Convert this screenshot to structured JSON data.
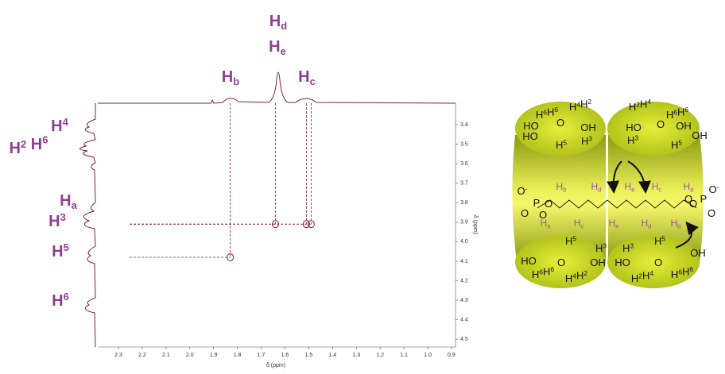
{
  "chart_data": {
    "type": "scatter",
    "x_label": "δ (ppm)",
    "y_label": "δ (ppm)",
    "x": [
      1.83,
      1.64,
      1.51,
      1.49
    ],
    "y": [
      4.08,
      3.91,
      3.91,
      3.91
    ],
    "color": "#7a1f2b",
    "xlim": [
      2.387,
      0.883
    ],
    "ylim": [
      3.29,
      4.54
    ],
    "xticks": [
      2.3,
      2.2,
      2.1,
      {
        "value": 2,
        "label": "2.0"
      },
      1.9,
      1.8,
      1.7,
      1.6,
      1.5,
      1.4,
      1.3,
      1.2,
      1.1,
      {
        "value": 1,
        "label": "1.0"
      },
      0.9
    ],
    "yticks": [
      3.4,
      3.5,
      3.6,
      3.7,
      3.8,
      3.9,
      {
        "value": 4,
        "label": "4.0"
      },
      4.1,
      4.2,
      4.3,
      4.4,
      4.5
    ],
    "annotations": [
      [
        {
          "base": "H",
          "sub": "b"
        }
      ],
      [
        {
          "base": "H",
          "sub": "d"
        }
      ],
      [
        {
          "base": "H",
          "sub": "e"
        }
      ],
      [
        {
          "base": "H",
          "sub": "c"
        }
      ],
      [
        {
          "base": "H",
          "sup": "4"
        }
      ],
      [
        {
          "base": "H",
          "sup": "2"
        },
        {
          "base": " H",
          "sup": "6"
        }
      ],
      [
        {
          "base": "H",
          "sub": "a"
        }
      ],
      [
        {
          "base": "H",
          "sup": "3"
        }
      ],
      [
        {
          "base": "H",
          "sup": "5"
        }
      ],
      [
        {
          "base": "H",
          "sup": "6"
        }
      ]
    ]
  },
  "diagram": {
    "labels": [
      [
        {
          "base": "H",
          "sup": "6"
        },
        {
          "base": "H",
          "sup": "6"
        }
      ],
      [
        {
          "base": "H",
          "sup": "4"
        },
        {
          "base": "H",
          "sup": "2"
        }
      ],
      [
        {
          "base": "HO"
        }
      ],
      [
        {
          "base": "O"
        }
      ],
      [
        {
          "base": "OH"
        }
      ],
      [
        {
          "base": "H",
          "sup": "5"
        }
      ],
      [
        {
          "base": "H",
          "sup": "3"
        }
      ],
      [
        {
          "base": "HO"
        }
      ],
      [
        {
          "base": "H",
          "sup": "2"
        },
        {
          "base": "H",
          "sup": "4"
        }
      ],
      [
        {
          "base": "H",
          "sup": "6"
        },
        {
          "base": "H",
          "sup": "6"
        }
      ],
      [
        {
          "base": "HO"
        }
      ],
      [
        {
          "base": "O"
        }
      ],
      [
        {
          "base": "OH"
        }
      ],
      [
        {
          "base": "H",
          "sup": "3"
        }
      ],
      [
        {
          "base": "H",
          "sup": "5"
        }
      ],
      [
        {
          "base": "OH"
        }
      ],
      [
        {
          "base": "H",
          "sub": "b"
        }
      ],
      [
        {
          "base": "H",
          "sub": "d"
        }
      ],
      [
        {
          "base": "H",
          "sub": "e"
        }
      ],
      [
        {
          "base": "H",
          "sub": "c"
        }
      ],
      [
        {
          "base": "H",
          "sub": "a"
        }
      ],
      [
        {
          "base": "H",
          "sub": "a"
        }
      ],
      [
        {
          "base": "H",
          "sub": "c"
        }
      ],
      [
        {
          "base": "H",
          "sub": "e"
        }
      ],
      [
        {
          "base": "H",
          "sub": "d"
        }
      ],
      [
        {
          "base": "H",
          "sub": "b"
        }
      ],
      [
        {
          "base": "O",
          "sup": "-"
        }
      ],
      [
        {
          "base": "P"
        }
      ],
      [
        {
          "base": "O"
        }
      ],
      [
        {
          "base": "O"
        }
      ],
      [
        {
          "base": "O"
        }
      ],
      [
        {
          "base": "O",
          "sup": "-"
        }
      ],
      [
        {
          "base": "P"
        }
      ],
      [
        {
          "base": "O"
        }
      ],
      [
        {
          "base": "O"
        }
      ],
      [
        {
          "base": "O"
        }
      ],
      [
        {
          "base": "H",
          "sup": "5"
        }
      ],
      [
        {
          "base": "H",
          "sup": "3"
        }
      ],
      [
        {
          "base": "HO"
        }
      ],
      [
        {
          "base": "O"
        }
      ],
      [
        {
          "base": "OH"
        }
      ],
      [
        {
          "base": "H",
          "sup": "6"
        },
        {
          "base": "H",
          "sup": "6"
        }
      ],
      [
        {
          "base": "H",
          "sup": "4"
        },
        {
          "base": "H",
          "sup": "2"
        }
      ],
      [
        {
          "base": "H",
          "sup": "3"
        }
      ],
      [
        {
          "base": "H",
          "sup": "5"
        }
      ],
      [
        {
          "base": "HO"
        }
      ],
      [
        {
          "base": "O"
        }
      ],
      [
        {
          "base": "OH"
        }
      ],
      [
        {
          "base": "H",
          "sup": "2"
        },
        {
          "base": "H",
          "sup": "4"
        }
      ],
      [
        {
          "base": "H",
          "sup": "6"
        },
        {
          "base": "H",
          "sup": "6"
        }
      ]
    ]
  }
}
